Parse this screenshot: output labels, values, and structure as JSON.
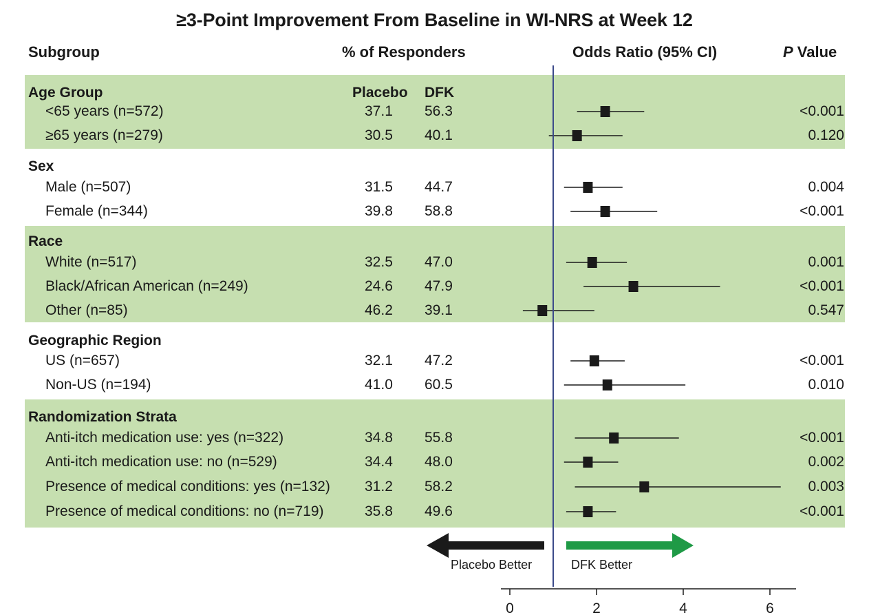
{
  "chart_data": {
    "type": "forest",
    "title": "≥3-Point Improvement From Baseline in WI-NRS at Week 12",
    "headers": {
      "subgroup": "Subgroup",
      "responders": "% of Responders",
      "odds_ratio": "Odds Ratio (95% CI)",
      "p_value_italic": "P",
      "p_value_rest": " Value"
    },
    "column_labels": {
      "placebo": "Placebo",
      "dfk": "DFK"
    },
    "groups": [
      {
        "name": "Age Group",
        "rows": [
          {
            "label": "<65 years (n=572)",
            "placebo": "37.1",
            "dfk": "56.3",
            "or": 2.2,
            "ci": [
              1.55,
              3.1
            ],
            "p": "<0.001"
          },
          {
            "label": "≥65 years (n=279)",
            "placebo": "30.5",
            "dfk": "40.1",
            "or": 1.55,
            "ci": [
              0.9,
              2.6
            ],
            "p": "0.120"
          }
        ]
      },
      {
        "name": "Sex",
        "rows": [
          {
            "label": "Male (n=507)",
            "placebo": "31.5",
            "dfk": "44.7",
            "or": 1.8,
            "ci": [
              1.25,
              2.6
            ],
            "p": "0.004"
          },
          {
            "label": "Female (n=344)",
            "placebo": "39.8",
            "dfk": "58.8",
            "or": 2.2,
            "ci": [
              1.4,
              3.4
            ],
            "p": "<0.001"
          }
        ]
      },
      {
        "name": "Race",
        "rows": [
          {
            "label": "White (n=517)",
            "placebo": "32.5",
            "dfk": "47.0",
            "or": 1.9,
            "ci": [
              1.3,
              2.7
            ],
            "p": "0.001"
          },
          {
            "label": "Black/African American (n=249)",
            "placebo": "24.6",
            "dfk": "47.9",
            "or": 2.85,
            "ci": [
              1.7,
              4.85
            ],
            "p": "<0.001"
          },
          {
            "label": "Other (n=85)",
            "placebo": "46.2",
            "dfk": "39.1",
            "or": 0.75,
            "ci": [
              0.3,
              1.95
            ],
            "p": "0.547"
          }
        ]
      },
      {
        "name": "Geographic Region",
        "rows": [
          {
            "label": "US (n=657)",
            "placebo": "32.1",
            "dfk": "47.2",
            "or": 1.95,
            "ci": [
              1.4,
              2.65
            ],
            "p": "<0.001"
          },
          {
            "label": "Non-US (n=194)",
            "placebo": "41.0",
            "dfk": "60.5",
            "or": 2.25,
            "ci": [
              1.25,
              4.05
            ],
            "p": "0.010"
          }
        ]
      },
      {
        "name": "Randomization Strata",
        "rows": [
          {
            "label": "Anti-itch medication use: yes (n=322)",
            "placebo": "34.8",
            "dfk": "55.8",
            "or": 2.4,
            "ci": [
              1.5,
              3.9
            ],
            "p": "<0.001"
          },
          {
            "label": "Anti-itch medication use: no (n=529)",
            "placebo": "34.4",
            "dfk": "48.0",
            "or": 1.8,
            "ci": [
              1.25,
              2.5
            ],
            "p": "0.002"
          },
          {
            "label": "Presence of medical conditions: yes (n=132)",
            "placebo": "31.2",
            "dfk": "58.2",
            "or": 3.1,
            "ci": [
              1.5,
              6.25
            ],
            "p": "0.003"
          },
          {
            "label": "Presence of medical conditions: no (n=719)",
            "placebo": "35.8",
            "dfk": "49.6",
            "or": 1.8,
            "ci": [
              1.3,
              2.45
            ],
            "p": "<0.001"
          }
        ]
      }
    ],
    "x_axis": {
      "ticks": [
        0,
        2,
        4,
        6
      ],
      "xlim": [
        0,
        6.5
      ],
      "reference_line": 1
    },
    "arrows": {
      "left_label": "Placebo Better",
      "right_label": "DFK Better",
      "left_color": "#1a1a1a",
      "right_color": "#1f9a46"
    },
    "band_color": "#c6dfb0",
    "marker_color": "#1a1a1a",
    "reference_line_color": "#3b4a8a"
  }
}
